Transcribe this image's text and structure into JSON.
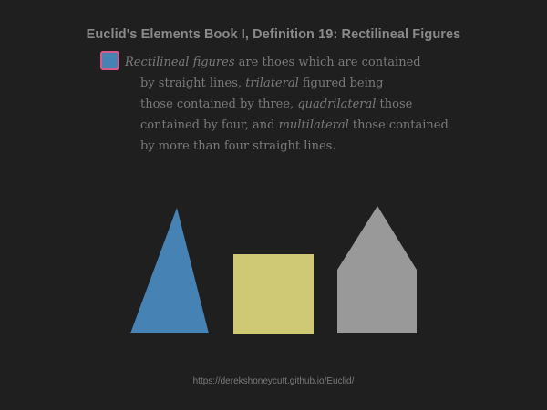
{
  "title": "Euclid's Elements Book I, Definition 19: Rectilineal Figures",
  "definition": {
    "line1": {
      "em1": "Rectilineal figures",
      "text1": " are thoes which are contained"
    },
    "line2": {
      "text1": "by straight lines, ",
      "em1": "trilateral",
      "text2": " figured being"
    },
    "line3": {
      "text1": "those contained by three, ",
      "em1": "quadrilateral",
      "text2": " those"
    },
    "line4": {
      "text1": "contained by four, and ",
      "em1": "multilateral",
      "text2": " those contained"
    },
    "line5": {
      "text1": "by more than four straight lines."
    }
  },
  "colors": {
    "background": "#1f1f1f",
    "trilateral": "#4682b4",
    "quadrilateral": "#cfc874",
    "multilateral": "#999999",
    "marker_fill": "#4682b4",
    "marker_border": "#d75a8c"
  },
  "footer_url": "https://derekshoneycutt.github.io/Euclid/"
}
